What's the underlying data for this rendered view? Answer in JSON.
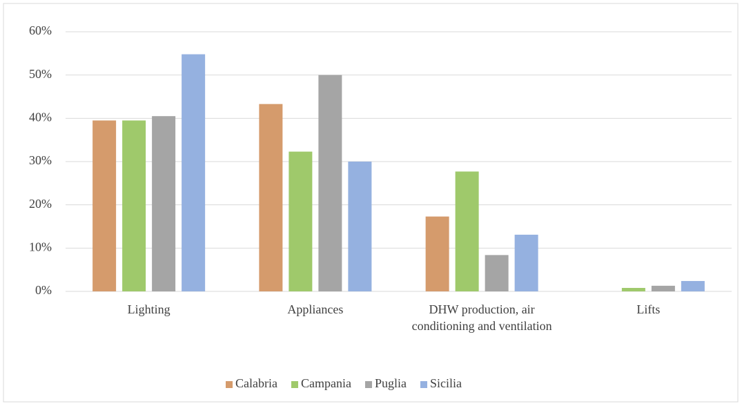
{
  "chart_data": {
    "type": "bar",
    "categories": [
      "Lighting",
      "Appliances",
      "DHW production, air conditioning and ventilation",
      "Lifts"
    ],
    "series": [
      {
        "name": "Calabria",
        "color": "#d59b6c",
        "values": [
          39.5,
          43.3,
          17.3,
          0
        ]
      },
      {
        "name": "Campania",
        "color": "#9fc96b",
        "values": [
          39.5,
          32.3,
          27.7,
          0.8
        ]
      },
      {
        "name": "Puglia",
        "color": "#a5a5a5",
        "values": [
          40.5,
          50.0,
          8.4,
          1.3
        ]
      },
      {
        "name": "Sicilia",
        "color": "#95b1e0",
        "values": [
          54.8,
          30.0,
          13.1,
          2.4
        ]
      }
    ],
    "ylim": [
      0,
      60
    ],
    "yticks": [
      {
        "value": 0,
        "label": "0%"
      },
      {
        "value": 10,
        "label": "10%"
      },
      {
        "value": 20,
        "label": "20%"
      },
      {
        "value": 30,
        "label": "30%"
      },
      {
        "value": 40,
        "label": "40%"
      },
      {
        "value": 50,
        "label": "50%"
      },
      {
        "value": 60,
        "label": "60%"
      }
    ],
    "grid": true,
    "legend": "bottom"
  }
}
